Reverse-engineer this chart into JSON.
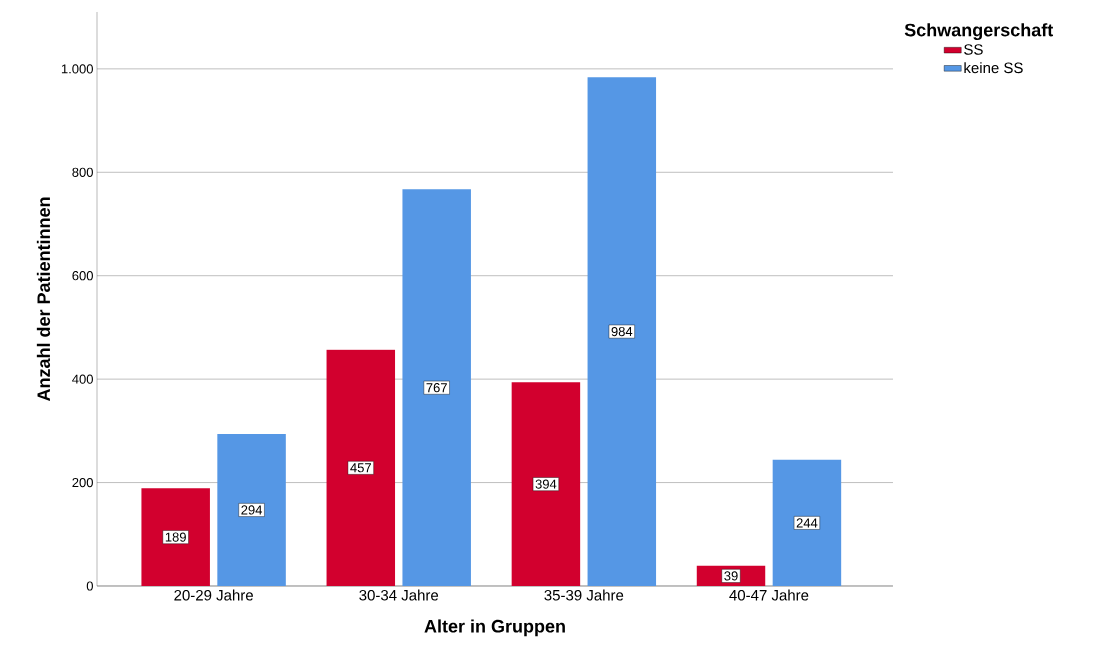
{
  "chart_data": {
    "type": "bar",
    "xlabel": "Alter in Gruppen",
    "ylabel": "Anzahl der Patientinnen",
    "legend_title": "Schwangerschaft",
    "categories": [
      "20-29 Jahre",
      "30-34 Jahre",
      "35-39 Jahre",
      "40-47 Jahre"
    ],
    "series": [
      {
        "name": "SS",
        "color": "#d2002e",
        "values": [
          189,
          457,
          394,
          39
        ]
      },
      {
        "name": "keine SS",
        "color": "#5597e5",
        "values": [
          294,
          767,
          984,
          244
        ]
      }
    ],
    "ylim": [
      0,
      1110
    ],
    "yticks": [
      0,
      200,
      400,
      600,
      800,
      {
        "value": 1000,
        "label": "1.000"
      }
    ],
    "grid": "y",
    "legend": "top right",
    "data_labels": true
  }
}
